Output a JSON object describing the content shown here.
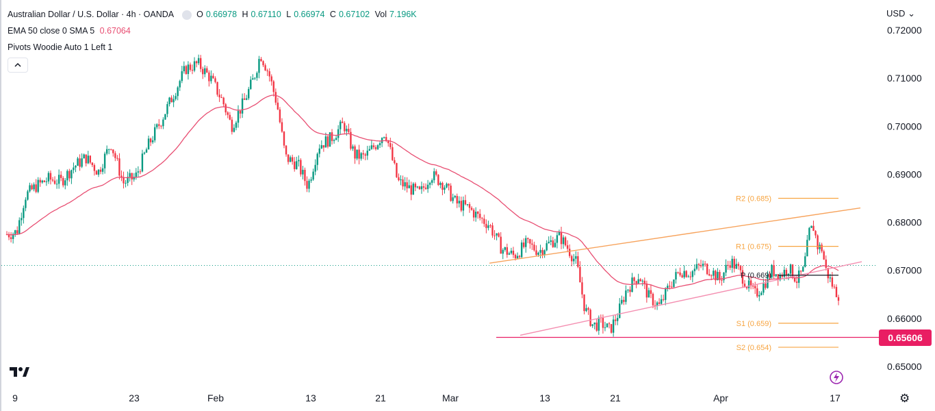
{
  "header": {
    "symbol": "Australian Dollar / U.S. Dollar · 4h · OANDA",
    "o_label": "O",
    "o_value": "0.66978",
    "h_label": "H",
    "h_value": "0.67110",
    "l_label": "L",
    "l_value": "0.66974",
    "c_label": "C",
    "c_value": "0.67102",
    "vol_label": "Vol",
    "vol_value": "7.196K"
  },
  "indicators": {
    "ema_label": "EMA 50 close 0 SMA 5",
    "ema_value": "0.67064",
    "pivots_label": "Pivots Woodie Auto 1 Left 1"
  },
  "axis": {
    "currency": "USD"
  },
  "price_badge": {
    "value": "0.65606",
    "color": "#e91e63"
  },
  "colors": {
    "up": "#089981",
    "down": "#f23645",
    "ema": "#e84e72",
    "channel": "#f7a35c",
    "pivot_level": "#f7a440",
    "support": "#e91e63",
    "pivot_p": "#131722"
  },
  "icons": {
    "collapse": "chevron-up-icon",
    "logo": "tradingview-logo-icon",
    "flash": "lightning-icon",
    "settings": "gear-icon"
  },
  "chart_data": {
    "type": "candlestick",
    "title": "Australian Dollar / U.S. Dollar · 4h · OANDA",
    "y_ticks": [
      "0.72000",
      "0.71000",
      "0.70000",
      "0.69000",
      "0.68000",
      "0.67000",
      "0.66000",
      "0.65000"
    ],
    "ylim": [
      0.648,
      0.722
    ],
    "x_ticks": [
      "9",
      "23",
      "Feb",
      "13",
      "21",
      "Mar",
      "13",
      "21",
      "Apr",
      "17"
    ],
    "price_path": [
      [
        0,
        0.6775
      ],
      [
        0.012,
        0.678
      ],
      [
        0.022,
        0.6855
      ],
      [
        0.035,
        0.6875
      ],
      [
        0.05,
        0.689
      ],
      [
        0.065,
        0.6885
      ],
      [
        0.08,
        0.6915
      ],
      [
        0.095,
        0.6935
      ],
      [
        0.11,
        0.6905
      ],
      [
        0.125,
        0.6965
      ],
      [
        0.14,
        0.6882
      ],
      [
        0.155,
        0.6895
      ],
      [
        0.17,
        0.696
      ],
      [
        0.185,
        0.701
      ],
      [
        0.2,
        0.7065
      ],
      [
        0.215,
        0.712
      ],
      [
        0.23,
        0.713
      ],
      [
        0.245,
        0.71
      ],
      [
        0.26,
        0.705
      ],
      [
        0.27,
        0.7
      ],
      [
        0.285,
        0.705
      ],
      [
        0.297,
        0.71
      ],
      [
        0.305,
        0.715
      ],
      [
        0.315,
        0.711
      ],
      [
        0.325,
        0.7045
      ],
      [
        0.335,
        0.6935
      ],
      [
        0.35,
        0.692
      ],
      [
        0.362,
        0.6875
      ],
      [
        0.375,
        0.696
      ],
      [
        0.39,
        0.6975
      ],
      [
        0.405,
        0.7005
      ],
      [
        0.418,
        0.694
      ],
      [
        0.43,
        0.6935
      ],
      [
        0.445,
        0.6965
      ],
      [
        0.455,
        0.699
      ],
      [
        0.47,
        0.6885
      ],
      [
        0.485,
        0.687
      ],
      [
        0.497,
        0.686
      ],
      [
        0.51,
        0.69
      ],
      [
        0.525,
        0.688
      ],
      [
        0.54,
        0.684
      ],
      [
        0.555,
        0.683
      ],
      [
        0.568,
        0.681
      ],
      [
        0.58,
        0.6795
      ],
      [
        0.595,
        0.6745
      ],
      [
        0.61,
        0.673
      ],
      [
        0.625,
        0.6755
      ],
      [
        0.64,
        0.674
      ],
      [
        0.655,
        0.676
      ],
      [
        0.665,
        0.677
      ],
      [
        0.675,
        0.6745
      ],
      [
        0.685,
        0.6715
      ],
      [
        0.695,
        0.662
      ],
      [
        0.705,
        0.6585
      ],
      [
        0.715,
        0.659
      ],
      [
        0.725,
        0.6575
      ],
      [
        0.735,
        0.661
      ],
      [
        0.745,
        0.666
      ],
      [
        0.76,
        0.669
      ],
      [
        0.772,
        0.6645
      ],
      [
        0.785,
        0.6625
      ],
      [
        0.797,
        0.667
      ],
      [
        0.81,
        0.67
      ],
      [
        0.822,
        0.6695
      ],
      [
        0.835,
        0.671
      ],
      [
        0.847,
        0.67
      ],
      [
        0.857,
        0.668
      ],
      [
        0.87,
        0.672
      ],
      [
        0.88,
        0.67
      ],
      [
        0.89,
        0.667
      ],
      [
        0.9,
        0.665
      ],
      [
        0.91,
        0.667
      ],
      [
        0.92,
        0.67
      ],
      [
        0.93,
        0.669
      ],
      [
        0.94,
        0.6705
      ],
      [
        0.95,
        0.668
      ],
      [
        0.958,
        0.67
      ],
      [
        0.965,
        0.678
      ],
      [
        0.97,
        0.679
      ],
      [
        0.975,
        0.675
      ],
      [
        0.98,
        0.6745
      ],
      [
        0.985,
        0.67
      ],
      [
        0.99,
        0.668
      ],
      [
        0.995,
        0.666
      ],
      [
        1.0,
        0.665
      ]
    ],
    "pivots": [
      {
        "label": "R2 (0.685)",
        "value": 0.685
      },
      {
        "label": "R1 (0.675)",
        "value": 0.675
      },
      {
        "label": "P (0.669)",
        "value": 0.669
      },
      {
        "label": "S1 (0.659)",
        "value": 0.659
      },
      {
        "label": "S2 (0.654)",
        "value": 0.654
      }
    ],
    "support_level": 0.65606,
    "last_price": 0.67102
  }
}
